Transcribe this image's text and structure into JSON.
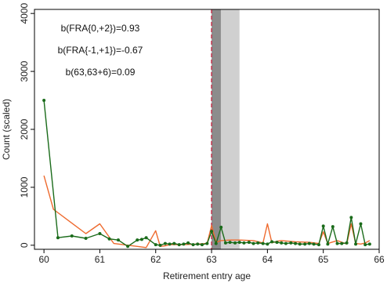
{
  "chart_data": {
    "type": "line",
    "title": "",
    "xlabel": "Retirement entry age",
    "ylabel": "Count (scaled)",
    "xlim": [
      59.83,
      66.0
    ],
    "ylim": [
      -70,
      4070
    ],
    "x_ticks": [
      60,
      61,
      62,
      63,
      64,
      65,
      66
    ],
    "y_ticks": [
      0,
      1000,
      2000,
      3000,
      4000
    ],
    "grid": false,
    "legend": "none",
    "annotations": [
      "b(FRA{0,+2})=0.93",
      "b(FRA{-1,+1})=-0.67",
      "b(63,63+6)=0.09"
    ],
    "shaded_regions": [
      {
        "x0": 63.0,
        "x1": 63.167,
        "color": "#8c8c8c"
      },
      {
        "x0": 63.167,
        "x1": 63.5,
        "color": "#d0d0d0"
      }
    ],
    "reference_lines": [
      {
        "x": 63.0,
        "style": "dashed",
        "color": "#c0304a"
      }
    ],
    "series": [
      {
        "color": "#1a6b1a",
        "markers": true,
        "x": [
          60.0,
          60.25,
          60.5,
          60.75,
          61.0,
          61.17,
          61.33,
          61.5,
          61.67,
          61.75,
          61.83,
          62.0,
          62.08,
          62.17,
          62.25,
          62.33,
          62.42,
          62.5,
          62.58,
          62.67,
          62.75,
          62.83,
          62.92,
          63.0,
          63.08,
          63.17,
          63.25,
          63.33,
          63.42,
          63.5,
          63.58,
          63.67,
          63.75,
          63.83,
          63.92,
          64.0,
          64.08,
          64.17,
          64.25,
          64.33,
          64.42,
          64.5,
          64.58,
          64.67,
          64.75,
          64.83,
          64.92,
          65.0,
          65.08,
          65.17,
          65.25,
          65.33,
          65.42,
          65.5,
          65.58,
          65.67,
          65.75,
          65.83
        ],
        "values": [
          2500,
          130,
          160,
          120,
          200,
          110,
          90,
          -20,
          90,
          100,
          130,
          10,
          0,
          30,
          20,
          30,
          10,
          20,
          40,
          10,
          20,
          10,
          30,
          240,
          30,
          310,
          40,
          50,
          40,
          50,
          40,
          50,
          30,
          40,
          30,
          20,
          60,
          50,
          40,
          30,
          40,
          30,
          20,
          20,
          30,
          20,
          10,
          330,
          20,
          320,
          30,
          30,
          40,
          480,
          20,
          370,
          10,
          20
        ]
      },
      {
        "color": "#ee6a2e",
        "markers": false,
        "x": [
          60.0,
          60.17,
          60.5,
          60.75,
          61.0,
          61.25,
          61.5,
          61.67,
          61.83,
          62.0,
          62.08,
          62.17,
          62.25,
          62.5,
          62.75,
          62.92,
          63.0,
          63.08,
          63.17,
          63.33,
          63.5,
          63.75,
          63.92,
          64.0,
          64.08,
          64.17,
          64.25,
          64.5,
          64.75,
          64.92,
          65.0,
          65.08,
          65.25,
          65.42,
          65.5,
          65.58,
          65.67,
          65.75,
          65.83
        ],
        "values": [
          1200,
          620,
          380,
          200,
          370,
          30,
          0,
          -20,
          -40,
          250,
          -20,
          -10,
          10,
          10,
          20,
          30,
          340,
          50,
          80,
          90,
          90,
          80,
          40,
          370,
          40,
          70,
          80,
          60,
          50,
          30,
          230,
          30,
          80,
          20,
          370,
          30,
          20,
          40,
          80
        ]
      }
    ]
  }
}
